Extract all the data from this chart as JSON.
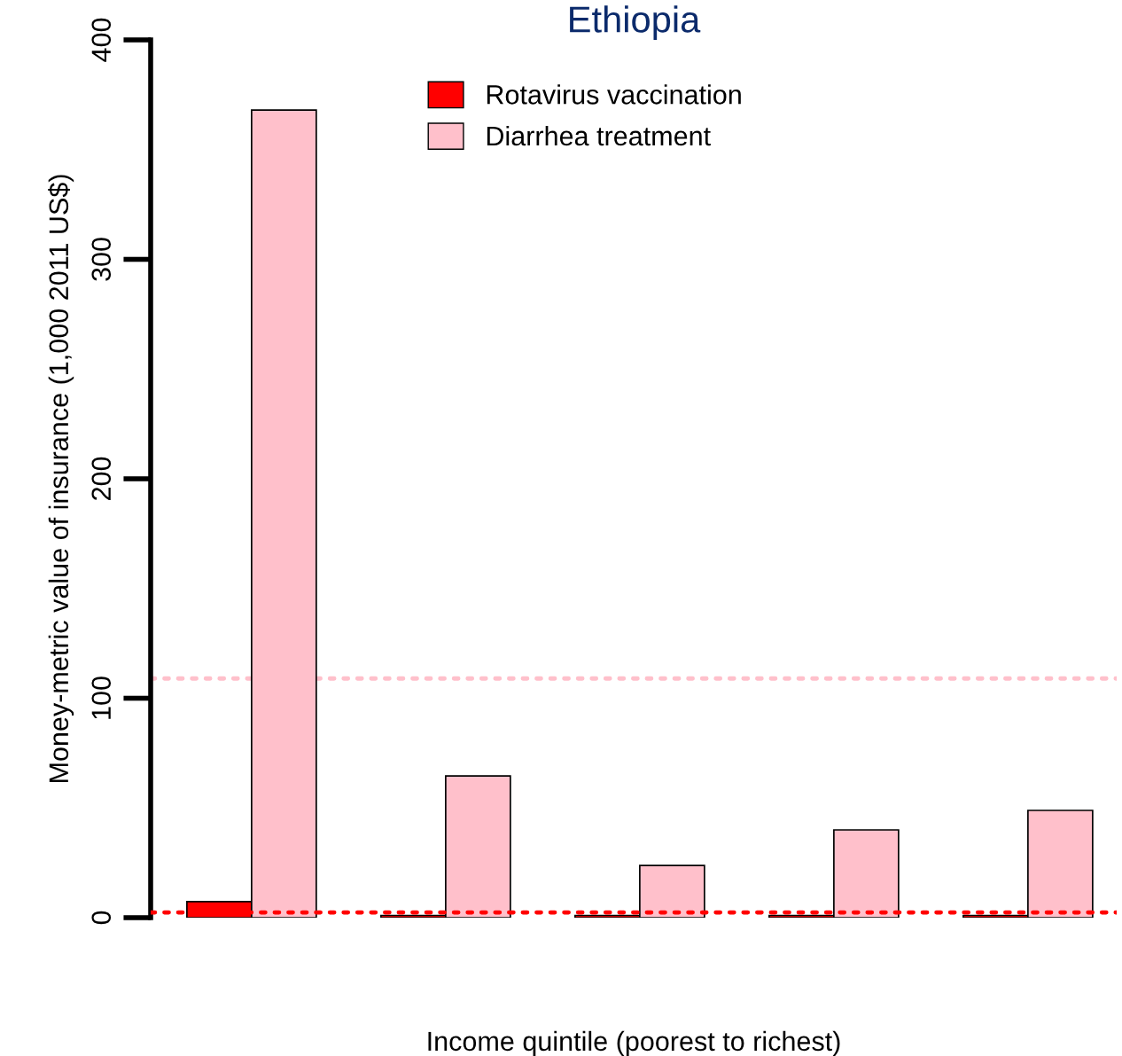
{
  "chart_data": {
    "type": "bar",
    "title": "Ethiopia",
    "xlabel": "Income quintile (poorest to richest)",
    "ylabel": "Money-metric value of insurance (1,000 2011 US$)",
    "categories": [
      null,
      null,
      null,
      null,
      null
    ],
    "series": [
      {
        "name": "Rotavirus vaccination",
        "color": "#ff0000",
        "values": [
          7.3,
          1,
          1,
          1,
          1
        ]
      },
      {
        "name": "Diarrhea treatment",
        "color": "#ffc0cb",
        "values": [
          368,
          64.6,
          23.8,
          40,
          48.9
        ]
      }
    ],
    "ylim": [
      0,
      400
    ],
    "yticks": [
      0,
      100,
      200,
      300,
      400
    ],
    "ref_lines": [
      {
        "axis": "y",
        "value": 109,
        "color": "#ffc0cb",
        "line_style": "dotted"
      },
      {
        "axis": "y",
        "value": 2.4,
        "color": "#ff0000",
        "line_style": "dotted"
      }
    ],
    "legend": "top",
    "grid": false
  }
}
